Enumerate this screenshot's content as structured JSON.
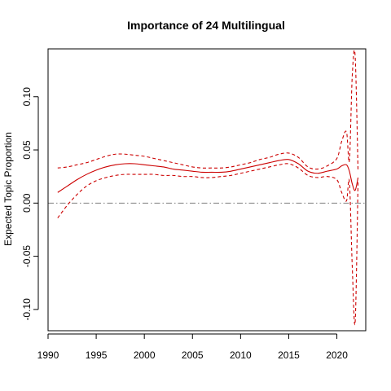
{
  "chart_data": {
    "type": "line",
    "title": "Importance of 24 Multilingual",
    "xlabel": "",
    "ylabel": "Expected Topic Proportion",
    "xlim": [
      1990,
      2023
    ],
    "ylim": [
      -0.12,
      0.145
    ],
    "x_ticks": [
      "1990",
      "1995",
      "2000",
      "2005",
      "2010",
      "2015",
      "2020"
    ],
    "y_ticks": [
      "-0.10",
      "-0.05",
      "0.00",
      "0.05",
      "0.10"
    ],
    "reference_line": {
      "y": 0.0,
      "style": "dash-dot",
      "color": "#808080"
    },
    "grid": false,
    "legend": "none",
    "colors": {
      "estimate": "#cc0000",
      "interval": "#cc0000"
    },
    "series": [
      {
        "role": "estimate",
        "style": "solid",
        "x": [
          1991,
          1992,
          1993,
          1994,
          1995,
          1996,
          1997,
          1998,
          1999,
          2000,
          2001,
          2002,
          2003,
          2004,
          2005,
          2006,
          2007,
          2008,
          2009,
          2010,
          2011,
          2012,
          2013,
          2014,
          2015,
          2016,
          2017,
          2018,
          2019,
          2020,
          2020.5,
          2021,
          2021.3,
          2021.6,
          2021.9,
          2022.2
        ],
        "values": [
          0.01,
          0.016,
          0.022,
          0.027,
          0.031,
          0.034,
          0.036,
          0.037,
          0.037,
          0.036,
          0.035,
          0.034,
          0.032,
          0.031,
          0.03,
          0.029,
          0.029,
          0.029,
          0.03,
          0.032,
          0.034,
          0.036,
          0.038,
          0.04,
          0.041,
          0.037,
          0.03,
          0.028,
          0.03,
          0.032,
          0.035,
          0.036,
          0.03,
          0.018,
          0.012,
          0.024
        ]
      },
      {
        "role": "upper",
        "style": "dashed",
        "x": [
          1991,
          1992,
          1993,
          1994,
          1995,
          1996,
          1997,
          1998,
          1999,
          2000,
          2001,
          2002,
          2003,
          2004,
          2005,
          2006,
          2007,
          2008,
          2009,
          2010,
          2011,
          2012,
          2013,
          2014,
          2015,
          2016,
          2017,
          2018,
          2019,
          2020,
          2020.5,
          2021,
          2021.3,
          2021.6,
          2021.9,
          2022.2
        ],
        "values": [
          0.033,
          0.034,
          0.036,
          0.038,
          0.041,
          0.044,
          0.046,
          0.046,
          0.045,
          0.044,
          0.042,
          0.04,
          0.038,
          0.036,
          0.034,
          0.033,
          0.033,
          0.033,
          0.034,
          0.036,
          0.038,
          0.041,
          0.043,
          0.046,
          0.047,
          0.043,
          0.034,
          0.032,
          0.035,
          0.042,
          0.058,
          0.067,
          0.04,
          0.12,
          0.138,
          0.03
        ]
      },
      {
        "role": "lower",
        "style": "dashed",
        "x": [
          1991,
          1992,
          1993,
          1994,
          1995,
          1996,
          1997,
          1998,
          1999,
          2000,
          2001,
          2002,
          2003,
          2004,
          2005,
          2006,
          2007,
          2008,
          2009,
          2010,
          2011,
          2012,
          2013,
          2014,
          2015,
          2016,
          2017,
          2018,
          2019,
          2020,
          2020.5,
          2021,
          2021.3,
          2021.6,
          2021.9,
          2022.2
        ],
        "values": [
          -0.014,
          -0.002,
          0.008,
          0.016,
          0.021,
          0.024,
          0.026,
          0.027,
          0.027,
          0.027,
          0.027,
          0.026,
          0.026,
          0.025,
          0.025,
          0.024,
          0.024,
          0.025,
          0.026,
          0.028,
          0.03,
          0.032,
          0.034,
          0.036,
          0.037,
          0.033,
          0.026,
          0.024,
          0.025,
          0.022,
          0.01,
          0.002,
          0.02,
          -0.06,
          -0.112,
          0.02
        ]
      }
    ]
  }
}
